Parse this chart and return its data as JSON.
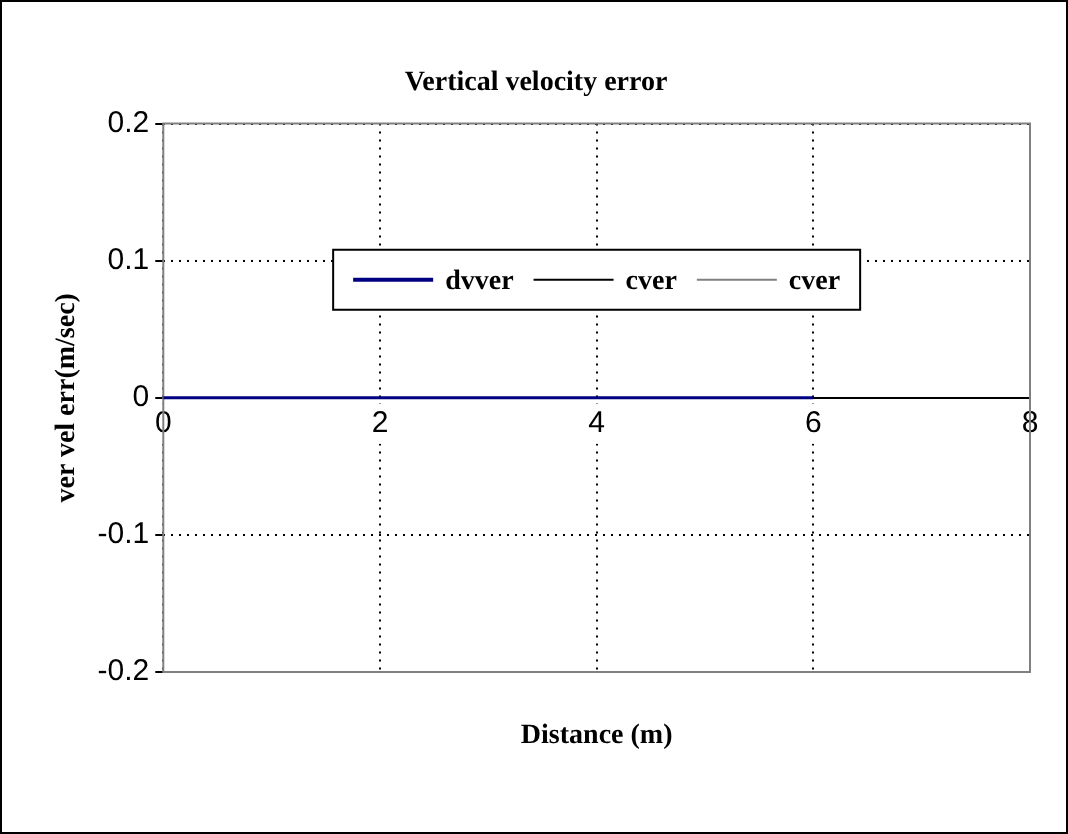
{
  "chart_data": {
    "type": "line",
    "title": "Vertical velocity error",
    "xlabel": "Distance (m)",
    "ylabel": "ver vel err(m/sec)",
    "x": [
      0,
      6
    ],
    "series": [
      {
        "name": "dvver",
        "color": "#000080",
        "values": [
          0,
          0
        ]
      },
      {
        "name": "cver",
        "color": "#000000",
        "values": [
          null,
          null
        ]
      },
      {
        "name": "cver",
        "color": "#808080",
        "values": [
          null,
          null
        ]
      }
    ],
    "xlim": [
      0,
      8
    ],
    "xticks": [
      0,
      2,
      4,
      6,
      8
    ],
    "ylim": [
      -0.2,
      0.2
    ],
    "yticks": [
      -0.2,
      -0.1,
      0,
      0.1,
      0.2
    ],
    "grid": true,
    "legend": "top",
    "marker": "none",
    "line_style": "solid"
  }
}
